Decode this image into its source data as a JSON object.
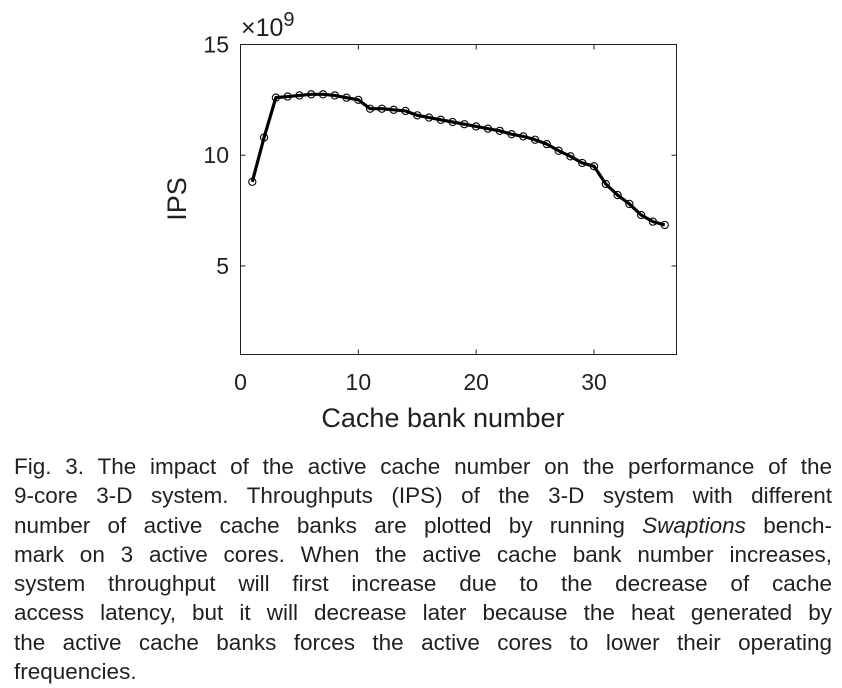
{
  "chart_data": {
    "type": "line",
    "xlabel": "Cache bank number",
    "ylabel": "IPS",
    "exponent_label": "×10",
    "exponent_power": "9",
    "xlim": [
      0,
      37
    ],
    "ylim": [
      1,
      15
    ],
    "xticks": [
      0,
      10,
      20,
      30
    ],
    "yticks": [
      5,
      10,
      15
    ],
    "grid": false,
    "series": [
      {
        "marker": "circle",
        "color": "#000000",
        "x": [
          1,
          2,
          3,
          4,
          5,
          6,
          7,
          8,
          9,
          10,
          11,
          12,
          13,
          14,
          15,
          16,
          17,
          18,
          19,
          20,
          21,
          22,
          23,
          24,
          25,
          26,
          27,
          28,
          29,
          30,
          31,
          32,
          33,
          34,
          35,
          36
        ],
        "y": [
          8.8,
          10.8,
          12.6,
          12.65,
          12.7,
          12.75,
          12.75,
          12.7,
          12.6,
          12.5,
          12.1,
          12.1,
          12.05,
          12.0,
          11.8,
          11.7,
          11.6,
          11.5,
          11.4,
          11.3,
          11.2,
          11.1,
          10.95,
          10.85,
          10.7,
          10.5,
          10.2,
          9.95,
          9.65,
          9.5,
          8.7,
          8.2,
          7.8,
          7.3,
          7.0,
          6.85
        ]
      }
    ]
  },
  "caption": {
    "lines": [
      [
        "Fig. 3. The impact of the active cache number on the performance of the"
      ],
      [
        "9-core 3-D system. Throughputs (IPS) of the 3-D system with different"
      ],
      [
        "number of active cache banks are plotted by running ",
        "Swaptions",
        " bench-"
      ],
      [
        "mark on 3 active cores. When the active cache bank number increases,"
      ],
      [
        "system throughput will first increase due to the decrease of cache"
      ],
      [
        "access latency, but it will decrease later because the heat generated by"
      ],
      [
        "the active cache banks forces the active cores to lower their operating"
      ],
      [
        "frequencies."
      ]
    ]
  }
}
